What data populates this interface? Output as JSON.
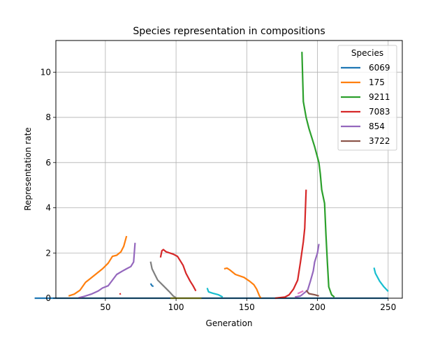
{
  "chart_data": {
    "type": "line",
    "title": "Species representation in compositions",
    "xlabel": "Generation",
    "ylabel": "Representation rate",
    "xlim": [
      15,
      260
    ],
    "ylim": [
      0,
      11.4
    ],
    "xticks": [
      50,
      100,
      150,
      200,
      250
    ],
    "yticks": [
      0,
      2,
      4,
      6,
      8,
      10
    ],
    "grid": true,
    "legend": {
      "title": "Species",
      "placement": "top-right"
    },
    "series": [
      {
        "name": "6069",
        "color": "#1f77b4",
        "segments": [
          [
            [
              0,
              0
            ],
            [
              250,
              0
            ]
          ],
          [
            [
              82,
              0.65
            ],
            [
              83,
              0.55
            ],
            [
              84,
              0.52
            ]
          ]
        ]
      },
      {
        "name": "175",
        "color": "#ff7f0e",
        "segments": [
          [
            [
              24,
              0.1
            ],
            [
              28,
              0.18
            ],
            [
              32,
              0.35
            ],
            [
              36,
              0.7
            ],
            [
              40,
              0.9
            ],
            [
              44,
              1.1
            ],
            [
              48,
              1.3
            ],
            [
              52,
              1.55
            ],
            [
              55,
              1.85
            ],
            [
              58,
              1.9
            ],
            [
              61,
              2.05
            ],
            [
              63,
              2.3
            ],
            [
              65,
              2.75
            ]
          ],
          [
            [
              134,
              1.3
            ],
            [
              136,
              1.33
            ],
            [
              138,
              1.25
            ],
            [
              142,
              1.05
            ],
            [
              148,
              0.92
            ],
            [
              152,
              0.75
            ],
            [
              155,
              0.6
            ],
            [
              157,
              0.4
            ],
            [
              159,
              0.1
            ],
            [
              160,
              0.0
            ]
          ]
        ]
      },
      {
        "name": "9211",
        "color": "#2ca02c",
        "segments": [
          [
            [
              189,
              10.9
            ],
            [
              190,
              8.7
            ],
            [
              192,
              8.0
            ],
            [
              194,
              7.5
            ],
            [
              198,
              6.7
            ],
            [
              201,
              6.0
            ],
            [
              202,
              5.5
            ],
            [
              203,
              4.8
            ],
            [
              205,
              4.2
            ],
            [
              206,
              2.8
            ],
            [
              207,
              1.6
            ],
            [
              208,
              0.5
            ],
            [
              210,
              0.15
            ],
            [
              212,
              0.05
            ]
          ]
        ]
      },
      {
        "name": "7083",
        "color": "#d62728",
        "segments": [
          [
            [
              60,
              0.18
            ],
            [
              61,
              0.2
            ]
          ],
          [
            [
              89,
              1.8
            ],
            [
              90,
              2.1
            ],
            [
              91,
              2.15
            ],
            [
              93,
              2.05
            ],
            [
              98,
              1.95
            ],
            [
              101,
              1.85
            ],
            [
              103,
              1.65
            ],
            [
              105,
              1.45
            ],
            [
              107,
              1.1
            ],
            [
              110,
              0.75
            ],
            [
              112,
              0.55
            ],
            [
              114,
              0.32
            ]
          ],
          [
            [
              170,
              0
            ],
            [
              177,
              0.05
            ],
            [
              180,
              0.15
            ],
            [
              183,
              0.4
            ],
            [
              186,
              0.8
            ],
            [
              188,
              1.6
            ],
            [
              190,
              2.5
            ],
            [
              191,
              3.1
            ],
            [
              192,
              4.8
            ]
          ]
        ]
      },
      {
        "name": "854",
        "color": "#9467bd",
        "segments": [
          [
            [
              31,
              0.02
            ],
            [
              35,
              0.08
            ],
            [
              40,
              0.18
            ],
            [
              45,
              0.32
            ],
            [
              48,
              0.45
            ],
            [
              52,
              0.55
            ],
            [
              55,
              0.8
            ],
            [
              58,
              1.05
            ],
            [
              62,
              1.2
            ],
            [
              65,
              1.3
            ],
            [
              68,
              1.4
            ],
            [
              70,
              1.6
            ],
            [
              71,
              2.45
            ]
          ],
          [
            [
              184,
              0.05
            ],
            [
              188,
              0.1
            ],
            [
              193,
              0.35
            ],
            [
              195,
              0.75
            ],
            [
              197,
              1.2
            ],
            [
              198,
              1.6
            ],
            [
              200,
              2.0
            ],
            [
              201,
              2.4
            ]
          ]
        ]
      },
      {
        "name": "3722",
        "color": "#8c564b",
        "segments": [
          [
            [
              192,
              0.35
            ],
            [
              194,
              0.2
            ],
            [
              198,
              0.15
            ],
            [
              201,
              0.1
            ]
          ]
        ]
      },
      {
        "name": "",
        "color": "#7f7f7f",
        "segments": [
          [
            [
              82,
              1.62
            ],
            [
              83,
              1.3
            ],
            [
              85,
              1.05
            ],
            [
              87,
              0.8
            ],
            [
              91,
              0.55
            ],
            [
              95,
              0.3
            ],
            [
              98,
              0.1
            ],
            [
              100,
              0.02
            ]
          ]
        ]
      },
      {
        "name": "",
        "color": "#e377c2",
        "segments": [
          [
            [
              186,
              0.2
            ],
            [
              190,
              0.32
            ]
          ]
        ]
      },
      {
        "name": "",
        "color": "#bcbd22",
        "segments": [
          [
            [
              96,
              0
            ],
            [
              118,
              0
            ]
          ]
        ]
      },
      {
        "name": "",
        "color": "#17becf",
        "segments": [
          [
            [
              122,
              0.45
            ],
            [
              123,
              0.28
            ],
            [
              126,
              0.22
            ],
            [
              130,
              0.15
            ],
            [
              133,
              0.05
            ]
          ],
          [
            [
              240,
              1.35
            ],
            [
              241,
              1.1
            ],
            [
              244,
              0.75
            ],
            [
              247,
              0.5
            ],
            [
              250,
              0.3
            ]
          ]
        ]
      }
    ]
  }
}
